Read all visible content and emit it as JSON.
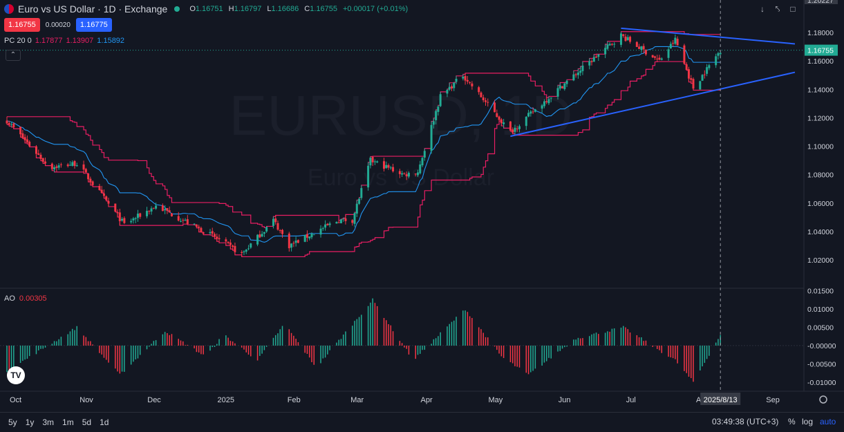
{
  "header": {
    "title": "Euro vs US Dollar · 1D · Exchange",
    "ohlc": [
      {
        "k": "O",
        "v": "1.16751"
      },
      {
        "k": "H",
        "v": "1.16797"
      },
      {
        "k": "L",
        "v": "1.16686"
      },
      {
        "k": "C",
        "v": "1.16755"
      },
      {
        "k": "",
        "v": "+0.00017 (+0.01%)"
      }
    ]
  },
  "quote": {
    "sell": "1.16755",
    "spread": "0.00020",
    "buy": "1.16775"
  },
  "indicator_pc": {
    "name": "PC 20 0",
    "upper": "1.17877",
    "lower": "1.13907",
    "basis": "1.15892"
  },
  "indicator_ao": {
    "name": "AO",
    "value": "0.00305"
  },
  "watermark": {
    "symbol": "EURUSD, 1D",
    "description": "Euro vs US Dollar"
  },
  "price_axis": {
    "labels": [
      "1.18000",
      "1.16000",
      "1.14000",
      "1.12000",
      "1.10000",
      "1.08000",
      "1.06000",
      "1.04000",
      "1.02000"
    ],
    "last_price": "1.16755",
    "top_crosshair": "1.20227"
  },
  "ao_axis": {
    "labels": [
      "0.01500",
      "0.01000",
      "0.00500",
      "-0.00000",
      "-0.00500",
      "-0.01000"
    ]
  },
  "time_axis": {
    "labels": [
      "Oct",
      "Nov",
      "Dec",
      "2025",
      "Feb",
      "Mar",
      "Apr",
      "May",
      "Jun",
      "Jul",
      "Aug",
      "Sep"
    ],
    "crosshair_date": "2025/8/13"
  },
  "bottom": {
    "ranges": [
      "5y",
      "1y",
      "3m",
      "1m",
      "5d",
      "1d"
    ],
    "clock": "03:49:38 (UTC+3)",
    "pct": "%",
    "log": "log",
    "auto": "auto"
  },
  "icons": {
    "logo": "tradingview-logo-icon",
    "collapse": "chevron-up-icon",
    "settings": "gear-icon"
  },
  "colors": {
    "bg": "#131722",
    "up": "#22ab94",
    "down": "#f23645",
    "channel": "#e91e63",
    "basis": "#2196f3",
    "trend": "#2962ff"
  },
  "chart_data": {
    "type": "candlestick",
    "title": "Euro vs US Dollar · 1D · Exchange",
    "ylim": [
      1.01,
      1.205
    ],
    "price_checkpoints": [
      {
        "date": "2024-10-01",
        "close": 1.118
      },
      {
        "date": "2024-10-20",
        "close": 1.085
      },
      {
        "date": "2024-11-01",
        "close": 1.088
      },
      {
        "date": "2024-11-22",
        "close": 1.045
      },
      {
        "date": "2024-12-06",
        "close": 1.058
      },
      {
        "date": "2024-12-31",
        "close": 1.037
      },
      {
        "date": "2025-01-13",
        "close": 1.024
      },
      {
        "date": "2025-01-27",
        "close": 1.048
      },
      {
        "date": "2025-02-03",
        "close": 1.03
      },
      {
        "date": "2025-02-25",
        "close": 1.048
      },
      {
        "date": "2025-03-03",
        "close": 1.048
      },
      {
        "date": "2025-03-11",
        "close": 1.09
      },
      {
        "date": "2025-03-26",
        "close": 1.08
      },
      {
        "date": "2025-04-01",
        "close": 1.082
      },
      {
        "date": "2025-04-11",
        "close": 1.135
      },
      {
        "date": "2025-04-21",
        "close": 1.15
      },
      {
        "date": "2025-05-12",
        "close": 1.11
      },
      {
        "date": "2025-06-02",
        "close": 1.14
      },
      {
        "date": "2025-06-30",
        "close": 1.178
      },
      {
        "date": "2025-07-17",
        "close": 1.16
      },
      {
        "date": "2025-07-24",
        "close": 1.175
      },
      {
        "date": "2025-08-01",
        "close": 1.141
      },
      {
        "date": "2025-08-13",
        "close": 1.1676
      }
    ],
    "ao_checkpoints": [
      {
        "date": "2024-10-01",
        "ao": -0.007
      },
      {
        "date": "2024-11-01",
        "ao": 0.005
      },
      {
        "date": "2024-11-20",
        "ao": -0.008
      },
      {
        "date": "2024-12-10",
        "ao": 0.004
      },
      {
        "date": "2024-12-28",
        "ao": -0.003
      },
      {
        "date": "2025-01-05",
        "ao": 0.003
      },
      {
        "date": "2025-01-20",
        "ao": -0.004
      },
      {
        "date": "2025-02-01",
        "ao": 0.006
      },
      {
        "date": "2025-02-15",
        "ao": -0.006
      },
      {
        "date": "2025-03-12",
        "ao": 0.0125
      },
      {
        "date": "2025-03-30",
        "ao": -0.004
      },
      {
        "date": "2025-04-22",
        "ao": 0.01
      },
      {
        "date": "2025-05-08",
        "ao": -0.003
      },
      {
        "date": "2025-05-20",
        "ao": -0.008
      },
      {
        "date": "2025-06-10",
        "ao": 0.002
      },
      {
        "date": "2025-07-01",
        "ao": 0.005
      },
      {
        "date": "2025-07-24",
        "ao": -0.004
      },
      {
        "date": "2025-08-01",
        "ao": -0.01
      },
      {
        "date": "2025-08-13",
        "ao": 0.003
      }
    ],
    "trendlines": [
      {
        "name": "resistance",
        "from": {
          "date": "2025-06-30",
          "price": 1.183
        },
        "to": {
          "date": "2025-09-15",
          "price": 1.172
        }
      },
      {
        "name": "support",
        "from": {
          "date": "2025-05-12",
          "price": 1.107
        },
        "to": {
          "date": "2025-09-15",
          "price": 1.152
        }
      }
    ],
    "channel_period": 20
  }
}
